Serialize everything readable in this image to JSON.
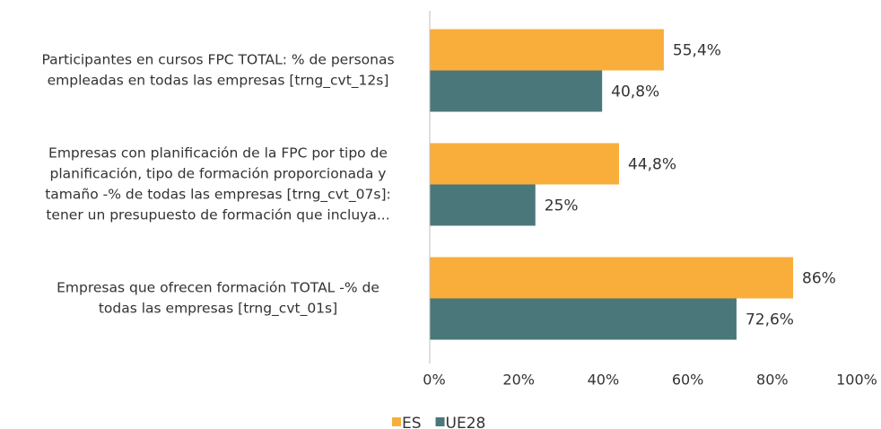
{
  "chart_data": {
    "type": "hbar",
    "categories": [
      [
        "Participantes en cursos FPC TOTAL: % de personas",
        "empleadas en todas las empresas [trng_cvt_12s]"
      ],
      [
        "Empresas con planificación de la FPC por tipo de",
        "planificación, tipo de formación proporcionada y",
        "tamaño -% de todas las empresas [trng_cvt_07s]:",
        "tener un presupuesto de formación que incluya..."
      ],
      [
        "Empresas que ofrecen formación TOTAL -% de",
        "todas las empresas [trng_cvt_01s]"
      ]
    ],
    "series": [
      {
        "name": "ES",
        "color": "#F9AE3B",
        "values": [
          55.4,
          44.8,
          86
        ],
        "value_labels": [
          "55,4%",
          "44,8%",
          "86%"
        ]
      },
      {
        "name": "UE28",
        "color": "#4A777A",
        "values": [
          40.8,
          25,
          72.6
        ],
        "value_labels": [
          "40,8%",
          "25%",
          "72,6%"
        ]
      }
    ],
    "xlim": [
      0,
      100
    ],
    "xticks": [
      {
        "value": 0,
        "label": "0%"
      },
      {
        "value": 20,
        "label": "20%"
      },
      {
        "value": 40,
        "label": "40%"
      },
      {
        "value": 60,
        "label": "60%"
      },
      {
        "value": 80,
        "label": "80%"
      },
      {
        "value": 100,
        "label": "100%"
      }
    ],
    "legend": "bottom"
  }
}
